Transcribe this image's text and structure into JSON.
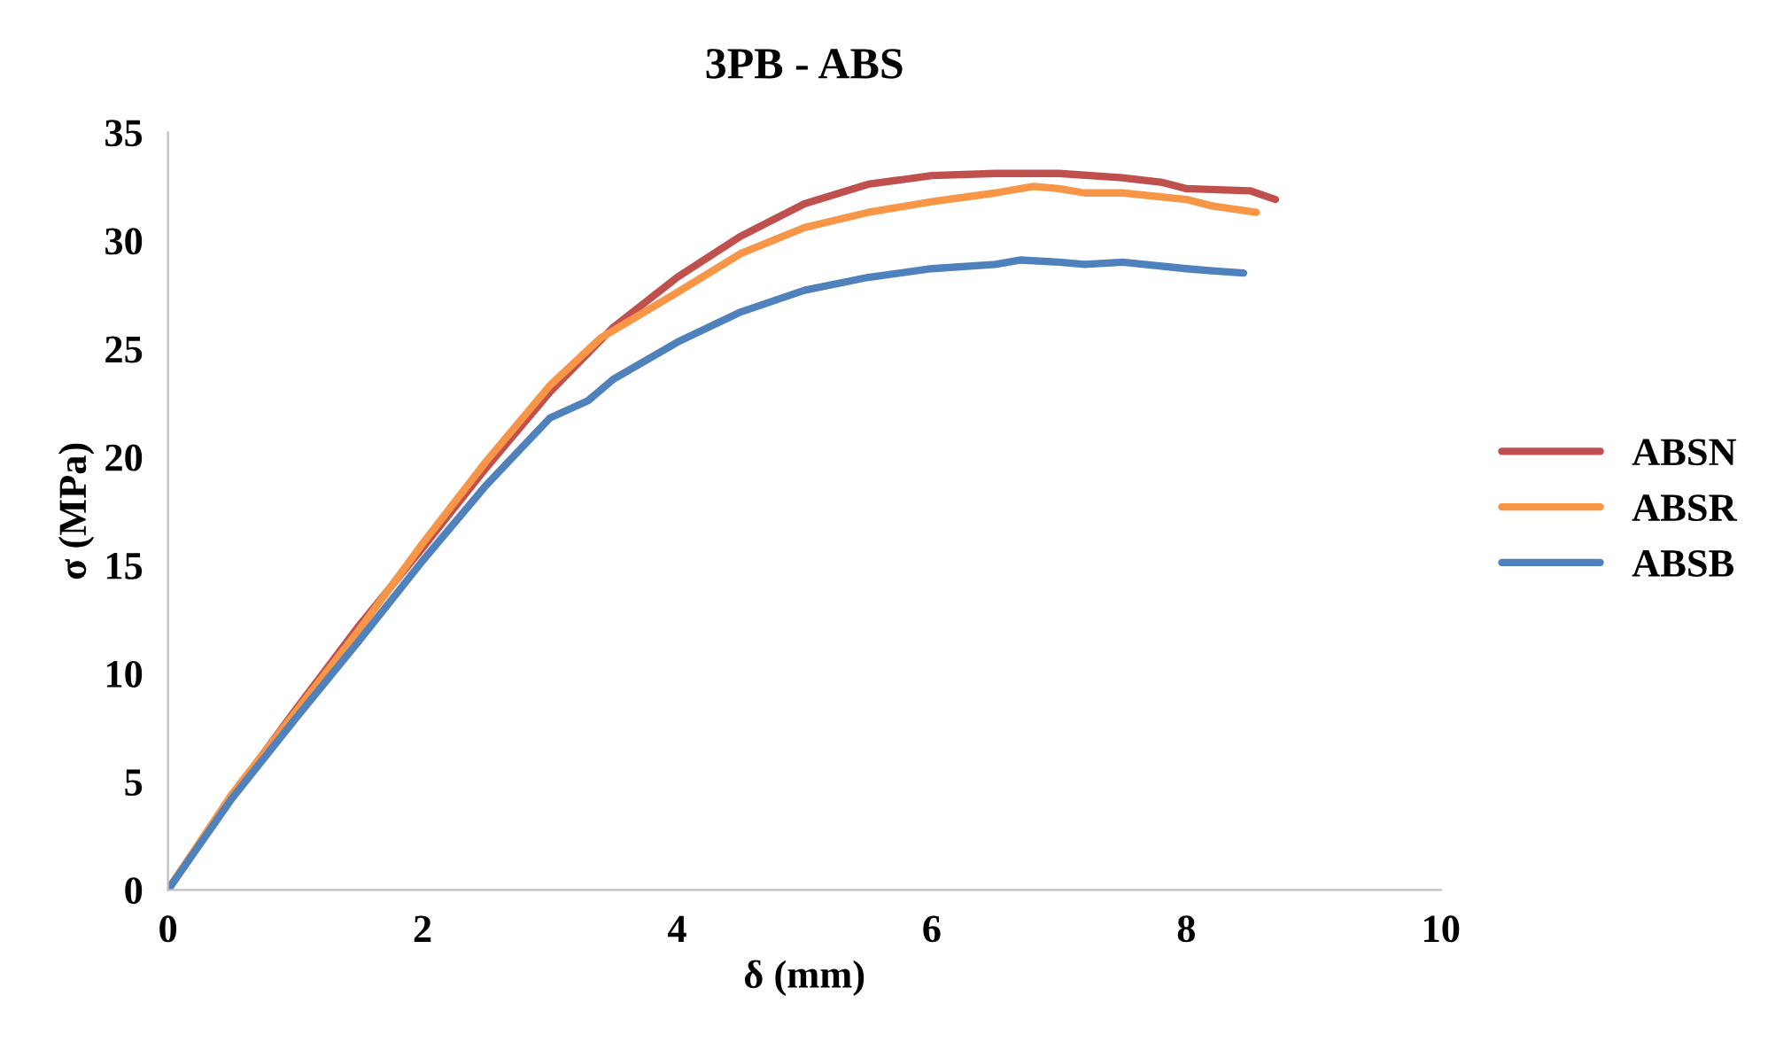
{
  "chart_data": {
    "type": "line",
    "title": "3PB - ABS",
    "xlabel": "δ (mm)",
    "ylabel": "σ (MPa)",
    "xlim": [
      0,
      10
    ],
    "xticks": [
      0,
      2,
      4,
      6,
      8,
      10
    ],
    "ylim": [
      0,
      35
    ],
    "yticks": [
      0,
      5,
      10,
      15,
      20,
      25,
      30,
      35
    ],
    "grid": false,
    "legend": "right",
    "marker": "none",
    "line_style": "solid",
    "series": [
      {
        "name": "ABSN",
        "color": "#c0504d",
        "x": [
          0,
          0.5,
          1,
          1.5,
          2,
          2.5,
          3,
          3.5,
          4,
          4.5,
          5,
          5.5,
          6,
          6.5,
          7,
          7.5,
          7.8,
          8,
          8.5,
          8.7
        ],
        "values": [
          0,
          4.3,
          8.3,
          12.2,
          15.8,
          19.5,
          23,
          26,
          28.3,
          30.2,
          31.7,
          32.6,
          33,
          33.1,
          33.1,
          32.9,
          32.7,
          32.4,
          32.3,
          31.9
        ]
      },
      {
        "name": "ABSR",
        "color": "#f79646",
        "x": [
          0,
          0.5,
          1,
          1.5,
          2,
          2.5,
          3,
          3.4,
          3.6,
          4,
          4.5,
          5,
          5.5,
          6,
          6.5,
          6.8,
          7,
          7.2,
          7.5,
          8,
          8.2,
          8.55
        ],
        "values": [
          0,
          4.4,
          8.2,
          12,
          16,
          19.8,
          23.3,
          25.5,
          26.2,
          27.6,
          29.4,
          30.6,
          31.3,
          31.8,
          32.2,
          32.5,
          32.4,
          32.2,
          32.2,
          31.9,
          31.6,
          31.3
        ]
      },
      {
        "name": "ABSB",
        "color": "#4f81bd",
        "x": [
          0,
          0.5,
          1,
          1.5,
          2,
          2.5,
          3,
          3.3,
          3.5,
          4,
          4.5,
          5,
          5.5,
          6,
          6.5,
          6.7,
          7,
          7.2,
          7.5,
          8,
          8.2,
          8.45
        ],
        "values": [
          0,
          4.2,
          7.9,
          11.5,
          15.2,
          18.7,
          21.8,
          22.6,
          23.6,
          25.3,
          26.7,
          27.7,
          28.3,
          28.7,
          28.9,
          29.1,
          29,
          28.9,
          29,
          28.7,
          28.6,
          28.5
        ]
      }
    ]
  }
}
